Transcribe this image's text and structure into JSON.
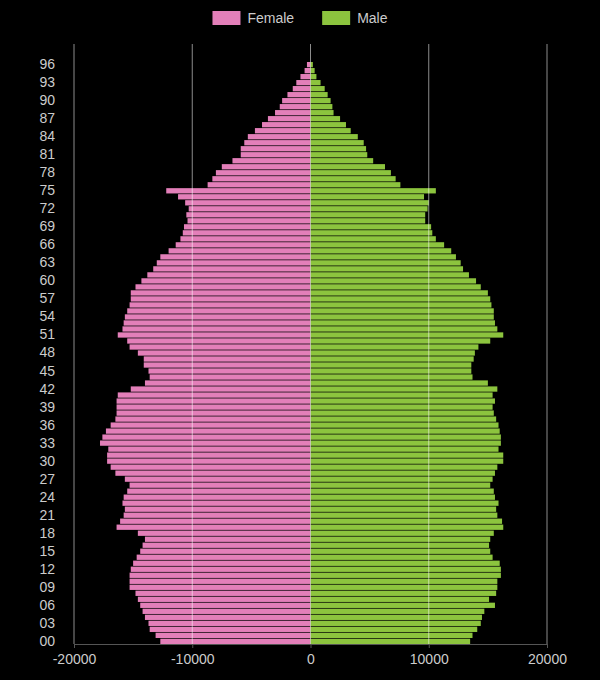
{
  "chart_data": {
    "type": "bar",
    "orientation": "horizontal",
    "grid": true,
    "legend": "top",
    "categories": [
      "00",
      null,
      null,
      "03",
      null,
      null,
      "06",
      null,
      null,
      "09",
      null,
      null,
      "12",
      null,
      null,
      "15",
      null,
      null,
      "18",
      null,
      null,
      "21",
      null,
      null,
      "24",
      null,
      null,
      "27",
      null,
      null,
      "30",
      null,
      null,
      "33",
      null,
      null,
      "36",
      null,
      null,
      "39",
      null,
      null,
      "42",
      null,
      null,
      "45",
      null,
      null,
      "48",
      null,
      null,
      "51",
      null,
      null,
      "54",
      null,
      null,
      "57",
      null,
      null,
      "60",
      null,
      null,
      "63",
      null,
      null,
      "66",
      null,
      null,
      "69",
      null,
      null,
      "72",
      null,
      null,
      "75",
      null,
      null,
      "78",
      null,
      null,
      "81",
      null,
      null,
      "84",
      null,
      null,
      "87",
      null,
      null,
      "90",
      null,
      null,
      "93",
      null,
      null,
      "96"
    ],
    "xlim": [
      -20000,
      20000
    ],
    "xticks": [
      -20000,
      -10000,
      0,
      10000,
      20000
    ],
    "series": [
      {
        "name": "Female",
        "color": "#e37fb9",
        "values": [
          -12700,
          -13100,
          -13600,
          -13700,
          -14000,
          -14200,
          -14400,
          -14600,
          -14800,
          -15300,
          -15300,
          -15300,
          -15200,
          -15000,
          -14700,
          -14400,
          -14200,
          -14000,
          -14600,
          -16400,
          -16100,
          -15800,
          -15700,
          -15900,
          -15800,
          -15500,
          -15300,
          -15700,
          -16500,
          -16900,
          -17200,
          -17200,
          -17100,
          -17800,
          -17600,
          -17300,
          -16900,
          -16500,
          -16400,
          -16400,
          -16400,
          -16300,
          -15200,
          -14000,
          -13600,
          -13700,
          -14100,
          -14100,
          -14600,
          -15300,
          -15500,
          -16300,
          -15900,
          -15800,
          -15700,
          -15500,
          -15300,
          -15200,
          -15200,
          -14800,
          -14300,
          -13800,
          -13300,
          -13000,
          -12700,
          -12000,
          -11400,
          -11000,
          -10800,
          -10700,
          -10400,
          -10500,
          -10300,
          -10600,
          -11200,
          -12200,
          -8700,
          -8300,
          -8000,
          -7500,
          -6600,
          -5900,
          -5900,
          -5600,
          -5300,
          -4700,
          -4100,
          -3600,
          -3000,
          -2600,
          -2400,
          -1950,
          -1500,
          -1200,
          -850,
          -500,
          -300
        ]
      },
      {
        "name": "Male",
        "color": "#8cc43e",
        "values": [
          13500,
          13700,
          14100,
          14400,
          14500,
          14700,
          15600,
          15100,
          15700,
          15800,
          15800,
          16100,
          16100,
          16000,
          15400,
          15200,
          15100,
          15200,
          15500,
          16300,
          16200,
          15800,
          15700,
          15900,
          15600,
          15500,
          15200,
          15400,
          15600,
          15800,
          16300,
          16300,
          15900,
          16100,
          16100,
          16000,
          15900,
          15700,
          15500,
          15400,
          15600,
          15400,
          15800,
          15000,
          13700,
          13600,
          13600,
          13800,
          13900,
          14200,
          15200,
          16300,
          15800,
          15600,
          15500,
          15500,
          15300,
          15200,
          15000,
          14400,
          14000,
          13400,
          12900,
          12700,
          12300,
          11900,
          11300,
          10600,
          10300,
          10200,
          9700,
          9700,
          9900,
          10000,
          9600,
          10600,
          7600,
          7200,
          6800,
          6300,
          5300,
          4800,
          4700,
          4500,
          4000,
          3400,
          3000,
          2500,
          1950,
          1850,
          1700,
          1450,
          1200,
          850,
          500,
          350,
          200
        ]
      }
    ]
  }
}
